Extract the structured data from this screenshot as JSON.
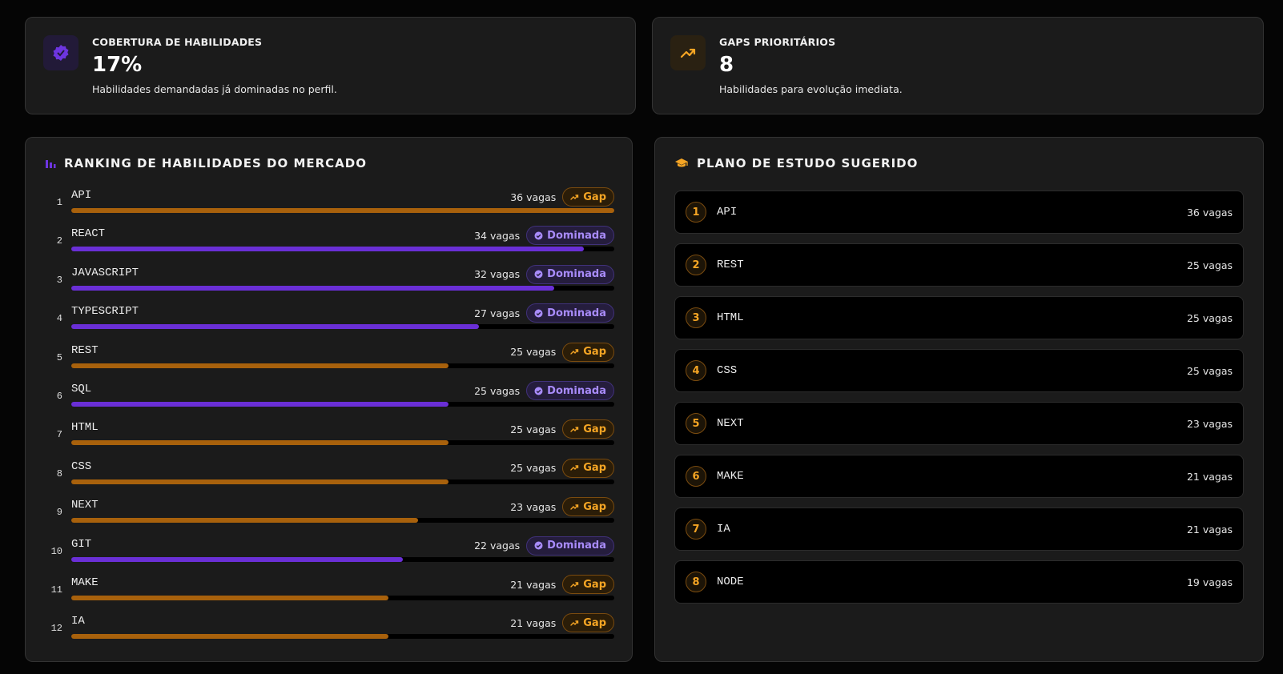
{
  "summary_cards": [
    {
      "title": "COBERTURA DE HABILIDADES",
      "value": "17%",
      "description": "Habilidades demandadas já dominadas no perfil."
    },
    {
      "title": "GAPS PRIORITÁRIOS",
      "value": "8",
      "description": "Habilidades para evolução imediata."
    }
  ],
  "ranking": {
    "title": "RANKING DE HABILIDADES DO MERCADO",
    "items": [
      {
        "rank": "1",
        "skill": "API",
        "count": 36,
        "count_label": "36 vagas",
        "status": "Gap"
      },
      {
        "rank": "2",
        "skill": "REACT",
        "count": 34,
        "count_label": "34 vagas",
        "status": "Dominada"
      },
      {
        "rank": "3",
        "skill": "JAVASCRIPT",
        "count": 32,
        "count_label": "32 vagas",
        "status": "Dominada"
      },
      {
        "rank": "4",
        "skill": "TYPESCRIPT",
        "count": 27,
        "count_label": "27 vagas",
        "status": "Dominada"
      },
      {
        "rank": "5",
        "skill": "REST",
        "count": 25,
        "count_label": "25 vagas",
        "status": "Gap"
      },
      {
        "rank": "6",
        "skill": "SQL",
        "count": 25,
        "count_label": "25 vagas",
        "status": "Dominada"
      },
      {
        "rank": "7",
        "skill": "HTML",
        "count": 25,
        "count_label": "25 vagas",
        "status": "Gap"
      },
      {
        "rank": "8",
        "skill": "CSS",
        "count": 25,
        "count_label": "25 vagas",
        "status": "Gap"
      },
      {
        "rank": "9",
        "skill": "NEXT",
        "count": 23,
        "count_label": "23 vagas",
        "status": "Gap"
      },
      {
        "rank": "10",
        "skill": "GIT",
        "count": 22,
        "count_label": "22 vagas",
        "status": "Dominada"
      },
      {
        "rank": "11",
        "skill": "MAKE",
        "count": 21,
        "count_label": "21 vagas",
        "status": "Gap"
      },
      {
        "rank": "12",
        "skill": "IA",
        "count": 21,
        "count_label": "21 vagas",
        "status": "Gap"
      }
    ]
  },
  "study_plan": {
    "title": "PLANO DE ESTUDO SUGERIDO",
    "items": [
      {
        "rank": "1",
        "skill": "API",
        "count_label": "36 vagas"
      },
      {
        "rank": "2",
        "skill": "REST",
        "count_label": "25 vagas"
      },
      {
        "rank": "3",
        "skill": "HTML",
        "count_label": "25 vagas"
      },
      {
        "rank": "4",
        "skill": "CSS",
        "count_label": "25 vagas"
      },
      {
        "rank": "5",
        "skill": "NEXT",
        "count_label": "23 vagas"
      },
      {
        "rank": "6",
        "skill": "MAKE",
        "count_label": "21 vagas"
      },
      {
        "rank": "7",
        "skill": "IA",
        "count_label": "21 vagas"
      },
      {
        "rank": "8",
        "skill": "NODE",
        "count_label": "19 vagas"
      }
    ]
  }
}
